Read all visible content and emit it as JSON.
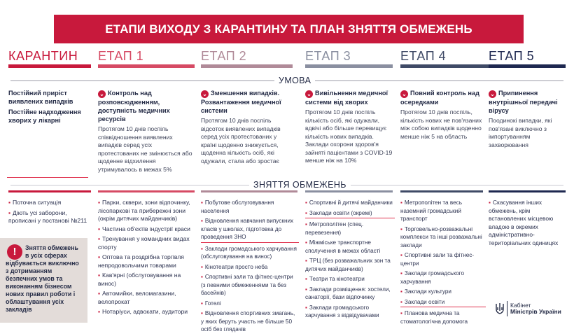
{
  "title": "ЕТАПИ ВИХОДУ З КАРАНТИНУ ТА ПЛАН ЗНЯТТЯ ОБМЕЖЕНЬ",
  "colors": {
    "quarantine": "#c8193c",
    "stage1": "#d64a64",
    "stage2": "#b08a98",
    "stage3": "#8a8fa0",
    "stage4": "#3f4a66",
    "stage5": "#1e2850"
  },
  "stages": [
    "КАРАНТИН",
    "ЕТАП 1",
    "ЕТАП 2",
    "ЕТАП 3",
    "ЕТАП 4",
    "ЕТАП 5"
  ],
  "condition_label": "УМОВА",
  "restrictions_label": "ЗНЯТТЯ ОБМЕЖЕНЬ",
  "conditions": {
    "quarantine": {
      "h1": "Постійний приріст виявлених випадків",
      "h2": "Постійне надходження хворих у лікарні"
    },
    "s1": {
      "h": "Контроль над розповсюдженням, доступність медичних ресурсів",
      "p": "Протягом 10 днів поспіль співвідношення виявлених випадків серед усіх протестованих не змінюється або щоденне відхилення утримувалось в межах 5%"
    },
    "s2": {
      "h": "Зменшення випадків. Розвантаження медичної системи",
      "p": "Протягом 10 днів поспіль відсоток виявлених випадків серед усіх протестованих у країні щоденно знижується, щоденна кількість осіб, які одужали, стала або зростає"
    },
    "s3": {
      "h": "Вивільнення медичної системи від хворих",
      "p": "Протягом 10 днів поспіль кількість осіб, які одужали, вдвічі або більше перевищує кількість нових випадків. Заклади охорони здоров'я зайняті пацієнтами з COVID-19 менше ніж на 10%"
    },
    "s4": {
      "h": "Повний контроль над осередками",
      "p": "Протягом 10 днів поспіль, кількість нових не пов'язаних між собою випадків щоденно менше ніж 5 на область"
    },
    "s5": {
      "h": "Припинення внутрішньої передачі вірусу",
      "p": "Поодинокі випадки, які пов'язані виключно з імпортуванням захворювання"
    }
  },
  "restrictions": {
    "quarantine": [
      "Поточна ситуація",
      "Діють усі заборони, прописані у постанові №211"
    ],
    "s1": [
      "Парки, сквери, зони відпочинку, лісопаркові та прибережні зони (окрім дитячих майданчиків)",
      "Частина об'єктів індустрії краси",
      "Тренування у командних видах спорту",
      "Оптова та роздрібна торгівля непродовольчими товарами",
      "Кав'ярні (обслуговування на винос)",
      "Автомийки, веломагазини, велопрокат",
      "Нотаріуси, адвокати, аудитори"
    ],
    "s2": [
      "Побутове обслуговування населення",
      "Відновлення навчання випускних класів у школах, підготовка до проведення ЗНО",
      "Заклади громадського харчування (обслуговування на винос)",
      "Кінотеатри просто неба",
      "Спортивні зали та фітнес-центри (з певними обмеженнями та без басейнів)",
      "Готелі",
      "Відновлення спортивних змагань, у яких беруть участь не більше 50 осіб без глядачів"
    ],
    "s3": [
      "Спортивні й дитячі майданчики",
      "Заклади освіти (окремі)",
      "Метрополітен (спец. перевезення)",
      "Міжміське транспортне сполучення в межах області",
      "ТРЦ (без розважальних зон та дитячих майданчиків)",
      "Театри та кінотеатри",
      "Заклади розміщення: хостели, санаторії, бази відпочинку",
      "Заклади громадського харчування з відвідувачами"
    ],
    "s4": [
      "Метрополітен та весь наземний громадський транспорт",
      "Торговельно-розважальні комплекси та інші розважальні заклади",
      "Спортивні зали та фітнес-центри",
      "Заклади громадського харчування",
      "Заклади культури",
      "Заклади освіти",
      "Планова медична та стоматологічна допомога"
    ],
    "s5": [
      "Скасування інших обмежень, крім встановлених місцевою владою в окремих адміністративно-територіальних одиницях"
    ]
  },
  "warning": "Зняття обмежень в усіх сферах відбувається виключно з дотриманням безпечних умов та виконанням бізнесом нових правил роботи і облаштування усіх закладів",
  "logo": {
    "line1": "Кабінет",
    "line2": "Міністрів України"
  }
}
